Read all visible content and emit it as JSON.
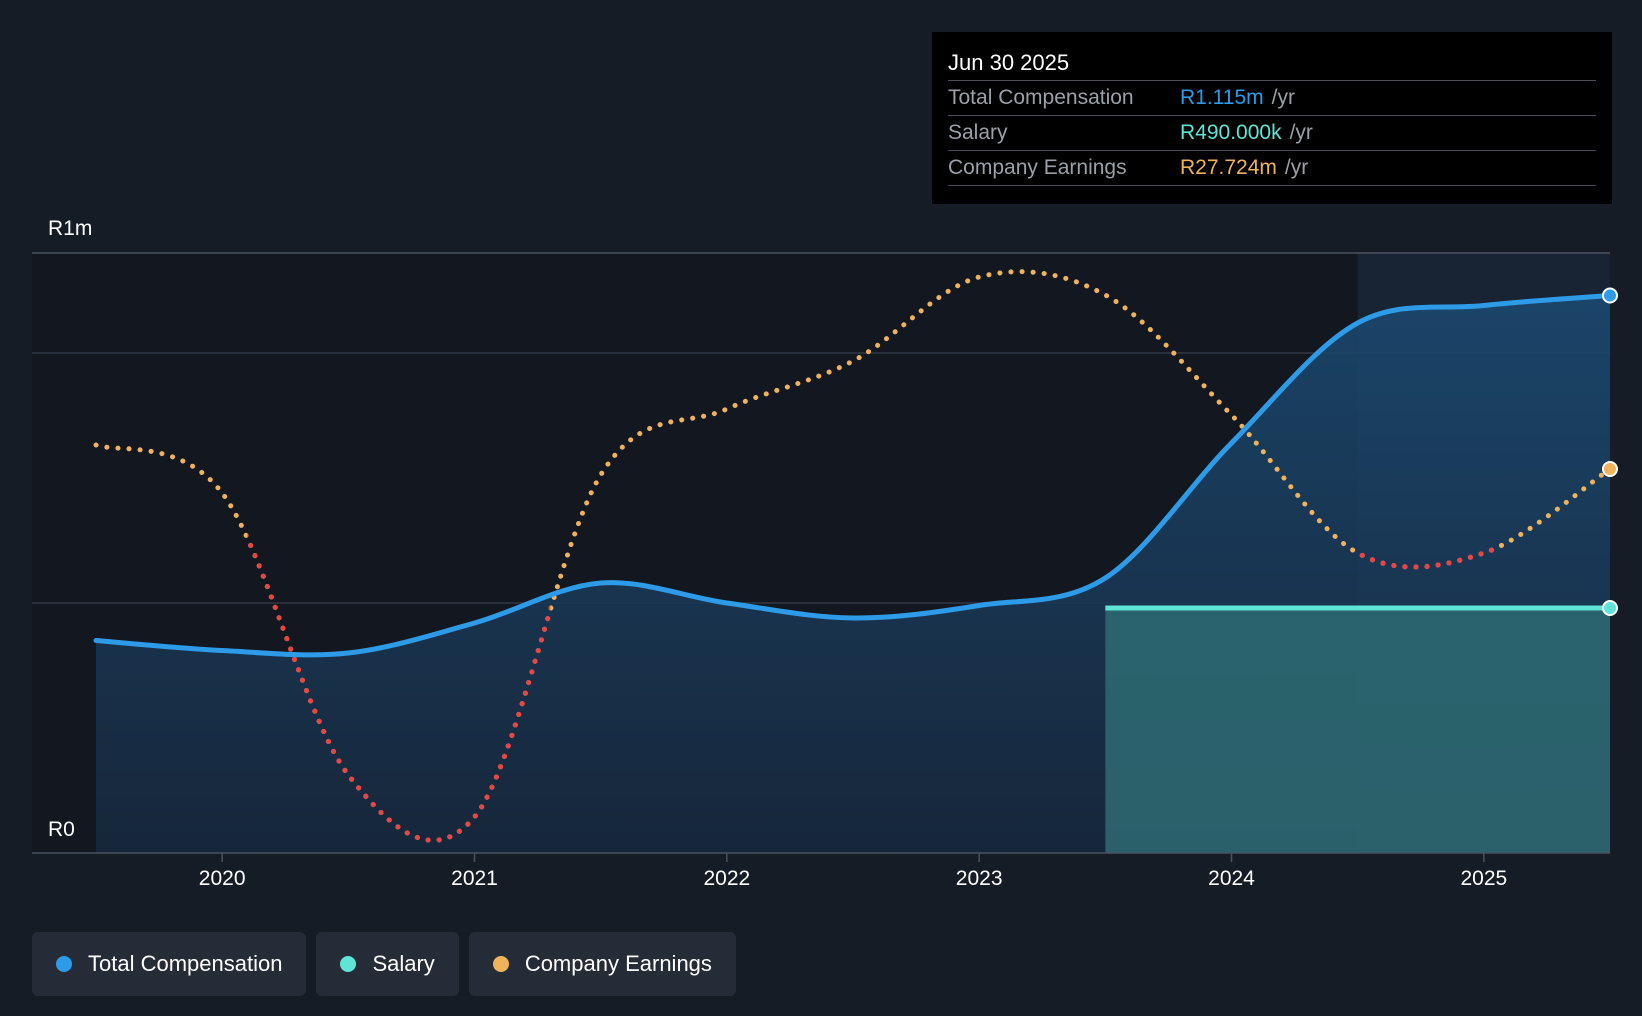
{
  "tooltip": {
    "date": "Jun 30 2025",
    "rows": [
      {
        "label": "Total Compensation",
        "value": "R1.115m",
        "unit": "/yr"
      },
      {
        "label": "Salary",
        "value": "R490.000k",
        "unit": "/yr"
      },
      {
        "label": "Company Earnings",
        "value": "R27.724m",
        "unit": "/yr"
      }
    ]
  },
  "legend": {
    "total": "Total Compensation",
    "salary": "Salary",
    "earnings": "Company Earnings"
  },
  "colors": {
    "total": "#2d9be8",
    "salary": "#5ee5d6",
    "earnings": "#f0b35a",
    "earnings_negative": "#e84545",
    "background": "#161c26"
  },
  "chart_data": {
    "type": "line",
    "title": "",
    "xlabel": "",
    "ylabel": "",
    "y_tick_labels": {
      "top": "R1m",
      "bottom": "R0"
    },
    "ylim": [
      0,
      1200000
    ],
    "xlim": [
      2019.5,
      2025.5
    ],
    "x_ticks": [
      2020,
      2021,
      2022,
      2023,
      2024,
      2025
    ],
    "x_tick_labels": [
      "2020",
      "2021",
      "2022",
      "2023",
      "2024",
      "2025"
    ],
    "highlight_start": 2024.5,
    "series": [
      {
        "name": "Total Compensation",
        "x": [
          2019.5,
          2020.0,
          2020.5,
          2021.0,
          2021.5,
          2022.0,
          2022.5,
          2023.0,
          2023.5,
          2024.0,
          2024.5,
          2025.0,
          2025.5
        ],
        "values": [
          425000,
          405000,
          400000,
          460000,
          540000,
          500000,
          470000,
          495000,
          550000,
          820000,
          1060000,
          1095000,
          1115000
        ]
      },
      {
        "name": "Salary",
        "x": [
          2023.5,
          2024.0,
          2024.5,
          2025.0,
          2025.5
        ],
        "values": [
          490000,
          490000,
          490000,
          490000,
          490000
        ]
      },
      {
        "name": "Company Earnings",
        "unit": "relative (scaled to chart height)",
        "x": [
          2019.5,
          2020.0,
          2020.5,
          2021.0,
          2021.5,
          2022.0,
          2022.5,
          2023.0,
          2023.5,
          2024.0,
          2024.5,
          2025.0,
          2025.5
        ],
        "values": [
          0.68,
          0.6,
          0.13,
          0.06,
          0.63,
          0.74,
          0.82,
          0.96,
          0.93,
          0.73,
          0.5,
          0.5,
          0.64
        ],
        "negative_segments": [
          [
            2020.1,
            2021.3
          ],
          [
            2024.5,
            2025.05
          ]
        ]
      }
    ]
  }
}
